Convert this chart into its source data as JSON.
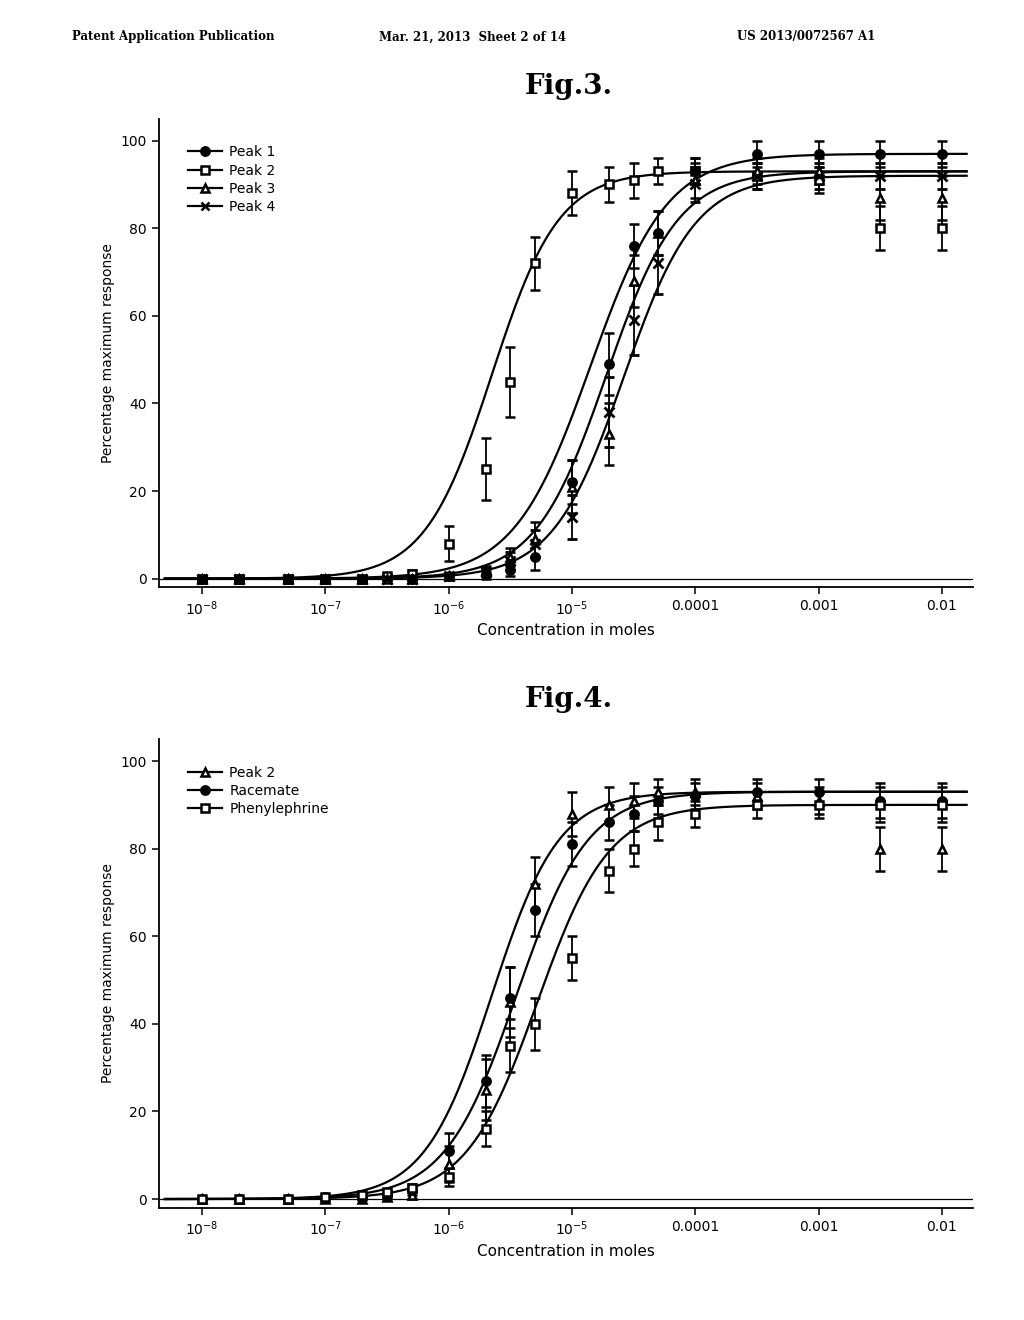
{
  "header_left": "Patent Application Publication",
  "header_mid": "Mar. 21, 2013  Sheet 2 of 14",
  "header_right": "US 2013/0072567 A1",
  "fig3_title": "Fig.3.",
  "fig4_title": "Fig.4.",
  "xlabel": "Concentration in moles",
  "ylabel": "Percentage maximum response",
  "background_color": "#ffffff",
  "line_color": "black",
  "text_color": "black",
  "xtick_positions": [
    -8,
    -7,
    -6,
    -5,
    -4,
    -3,
    -2
  ],
  "xtick_labels": [
    "$10^{-8}$",
    "$10^{-7}$",
    "$10^{-6}$",
    "$10^{-5}$",
    "0.0001",
    "0.001",
    "0.01"
  ],
  "ytick_positions": [
    0,
    20,
    40,
    60,
    80,
    100
  ],
  "ytick_labels": [
    "0",
    "20",
    "40",
    "60",
    "80",
    "100"
  ],
  "fig3": {
    "series_order": [
      "Peak2",
      "Peak3",
      "Peak4",
      "Peak1"
    ],
    "legend_order": [
      "Peak1",
      "Peak2",
      "Peak3",
      "Peak4"
    ],
    "Peak1": {
      "x": [
        -8,
        -7.7,
        -7.3,
        -7,
        -6.7,
        -6.3,
        -6.0,
        -5.7,
        -5.5,
        -5.3,
        -5.0,
        -4.7,
        -4.5,
        -4.3,
        -4.0,
        -3.5,
        -3.0,
        -2.5,
        -2.0
      ],
      "y": [
        0,
        0,
        0,
        0,
        0,
        0,
        0.5,
        1.0,
        2.0,
        5.0,
        22.0,
        49.0,
        76.0,
        79.0,
        93.0,
        97.0,
        97.0,
        97.0,
        97.0
      ],
      "yerr": [
        0.3,
        0.3,
        0.3,
        0.3,
        0.3,
        0.3,
        0.5,
        1.0,
        1.5,
        3.0,
        5.0,
        7.0,
        5.0,
        5.0,
        3.0,
        3.0,
        3.0,
        3.0,
        3.0
      ],
      "ec50": -4.85,
      "hill": 1.4,
      "emax": 97.0,
      "marker": "o",
      "fillstyle": "full",
      "label": "Peak 1"
    },
    "Peak2": {
      "x": [
        -8,
        -7.7,
        -7.3,
        -7,
        -6.7,
        -6.5,
        -6.3,
        -6.0,
        -5.7,
        -5.5,
        -5.3,
        -5.0,
        -4.7,
        -4.5,
        -4.3,
        -4.0,
        -3.5,
        -3.0,
        -2.5,
        -2.0
      ],
      "y": [
        0,
        0,
        0,
        0,
        0,
        0.5,
        1.0,
        8.0,
        25.0,
        45.0,
        72.0,
        88.0,
        90.0,
        91.0,
        93.0,
        93.0,
        92.0,
        91.0,
        80.0,
        80.0
      ],
      "yerr": [
        0.3,
        0.3,
        0.3,
        0.3,
        0.3,
        0.5,
        1.0,
        4.0,
        7.0,
        8.0,
        6.0,
        5.0,
        4.0,
        4.0,
        3.0,
        3.0,
        3.0,
        3.0,
        5.0,
        5.0
      ],
      "ec50": -5.65,
      "hill": 1.6,
      "emax": 93.0,
      "marker": "s",
      "fillstyle": "none",
      "label": "Peak 2"
    },
    "Peak3": {
      "x": [
        -8,
        -7.7,
        -7.3,
        -7,
        -6.7,
        -6.5,
        -6.3,
        -6.0,
        -5.7,
        -5.5,
        -5.3,
        -5.0,
        -4.7,
        -4.5,
        -4.3,
        -4.0,
        -3.5,
        -3.0,
        -2.5,
        -2.0
      ],
      "y": [
        0,
        0,
        0,
        0,
        0,
        0,
        0,
        0.5,
        2.0,
        5.0,
        9.0,
        21.0,
        33.0,
        68.0,
        79.0,
        91.0,
        93.0,
        93.0,
        87.0,
        87.0
      ],
      "yerr": [
        0.3,
        0.3,
        0.3,
        0.3,
        0.3,
        0.3,
        0.3,
        0.5,
        1.0,
        2.0,
        4.0,
        6.0,
        7.0,
        6.0,
        5.0,
        4.0,
        3.0,
        3.0,
        5.0,
        5.0
      ],
      "ec50": -4.72,
      "hill": 1.5,
      "emax": 93.0,
      "marker": "^",
      "fillstyle": "none",
      "label": "Peak 3"
    },
    "Peak4": {
      "x": [
        -8,
        -7.7,
        -7.3,
        -7,
        -6.7,
        -6.5,
        -6.3,
        -6.0,
        -5.7,
        -5.5,
        -5.3,
        -5.0,
        -4.7,
        -4.5,
        -4.3,
        -4.0,
        -3.5,
        -3.0,
        -2.5,
        -2.0
      ],
      "y": [
        0,
        0,
        0,
        0,
        0,
        0,
        0,
        0.5,
        1.5,
        4.0,
        8.0,
        14.0,
        38.0,
        59.0,
        72.0,
        90.0,
        92.0,
        92.0,
        92.0,
        92.0
      ],
      "yerr": [
        0.3,
        0.3,
        0.3,
        0.3,
        0.3,
        0.3,
        0.3,
        0.5,
        1.0,
        2.0,
        3.0,
        5.0,
        8.0,
        8.0,
        7.0,
        4.0,
        3.0,
        3.0,
        3.0,
        3.0
      ],
      "ec50": -4.58,
      "hill": 1.5,
      "emax": 92.0,
      "marker": "x",
      "fillstyle": "none",
      "label": "Peak 4"
    }
  },
  "fig4": {
    "series_order": [
      "Peak2",
      "Racemate",
      "Phenylephrine"
    ],
    "legend_order": [
      "Peak2",
      "Racemate",
      "Phenylephrine"
    ],
    "Peak2": {
      "x": [
        -8,
        -7.7,
        -7.3,
        -7,
        -6.7,
        -6.5,
        -6.3,
        -6.0,
        -5.7,
        -5.5,
        -5.3,
        -5.0,
        -4.7,
        -4.5,
        -4.3,
        -4.0,
        -3.5,
        -3.0,
        -2.5,
        -2.0
      ],
      "y": [
        0,
        0,
        0,
        0,
        0,
        0.5,
        1.0,
        8.0,
        25.0,
        45.0,
        72.0,
        88.0,
        90.0,
        91.0,
        93.0,
        93.0,
        92.0,
        91.0,
        80.0,
        80.0
      ],
      "yerr": [
        0.3,
        0.3,
        0.3,
        0.3,
        0.3,
        0.5,
        1.0,
        4.0,
        7.0,
        8.0,
        6.0,
        5.0,
        4.0,
        4.0,
        3.0,
        3.0,
        3.0,
        3.0,
        5.0,
        5.0
      ],
      "ec50": -5.65,
      "hill": 1.6,
      "emax": 93.0,
      "marker": "^",
      "fillstyle": "none",
      "label": "Peak 2"
    },
    "Racemate": {
      "x": [
        -8,
        -7.7,
        -7.3,
        -7,
        -6.7,
        -6.5,
        -6.3,
        -6.0,
        -5.7,
        -5.5,
        -5.3,
        -5.0,
        -4.7,
        -4.5,
        -4.3,
        -4.0,
        -3.5,
        -3.0,
        -2.5,
        -2.0
      ],
      "y": [
        0,
        0,
        0,
        0.5,
        0.5,
        1.0,
        2.0,
        11.0,
        27.0,
        46.0,
        66.0,
        81.0,
        86.0,
        88.0,
        91.0,
        92.0,
        93.0,
        93.0,
        91.0,
        91.0
      ],
      "yerr": [
        0.3,
        0.3,
        0.3,
        0.3,
        0.3,
        0.5,
        1.0,
        4.0,
        6.0,
        7.0,
        6.0,
        5.0,
        4.0,
        4.0,
        3.0,
        3.0,
        3.0,
        3.0,
        4.0,
        4.0
      ],
      "ec50": -5.45,
      "hill": 1.5,
      "emax": 93.0,
      "marker": "o",
      "fillstyle": "full",
      "label": "Racemate"
    },
    "Phenylephrine": {
      "x": [
        -8,
        -7.7,
        -7.3,
        -7,
        -6.7,
        -6.5,
        -6.3,
        -6.0,
        -5.7,
        -5.5,
        -5.3,
        -5.0,
        -4.7,
        -4.5,
        -4.3,
        -4.0,
        -3.5,
        -3.0,
        -2.5,
        -2.0
      ],
      "y": [
        0,
        0,
        0,
        0.5,
        1.0,
        1.5,
        2.5,
        5.0,
        16.0,
        35.0,
        40.0,
        55.0,
        75.0,
        80.0,
        86.0,
        88.0,
        90.0,
        90.0,
        90.0,
        90.0
      ],
      "yerr": [
        0.3,
        0.3,
        0.3,
        0.3,
        0.3,
        0.5,
        1.0,
        2.0,
        4.0,
        6.0,
        6.0,
        5.0,
        5.0,
        4.0,
        4.0,
        3.0,
        3.0,
        3.0,
        4.0,
        4.0
      ],
      "ec50": -5.28,
      "hill": 1.5,
      "emax": 90.0,
      "marker": "s",
      "fillstyle": "none",
      "label": "Phenylephrine"
    }
  }
}
